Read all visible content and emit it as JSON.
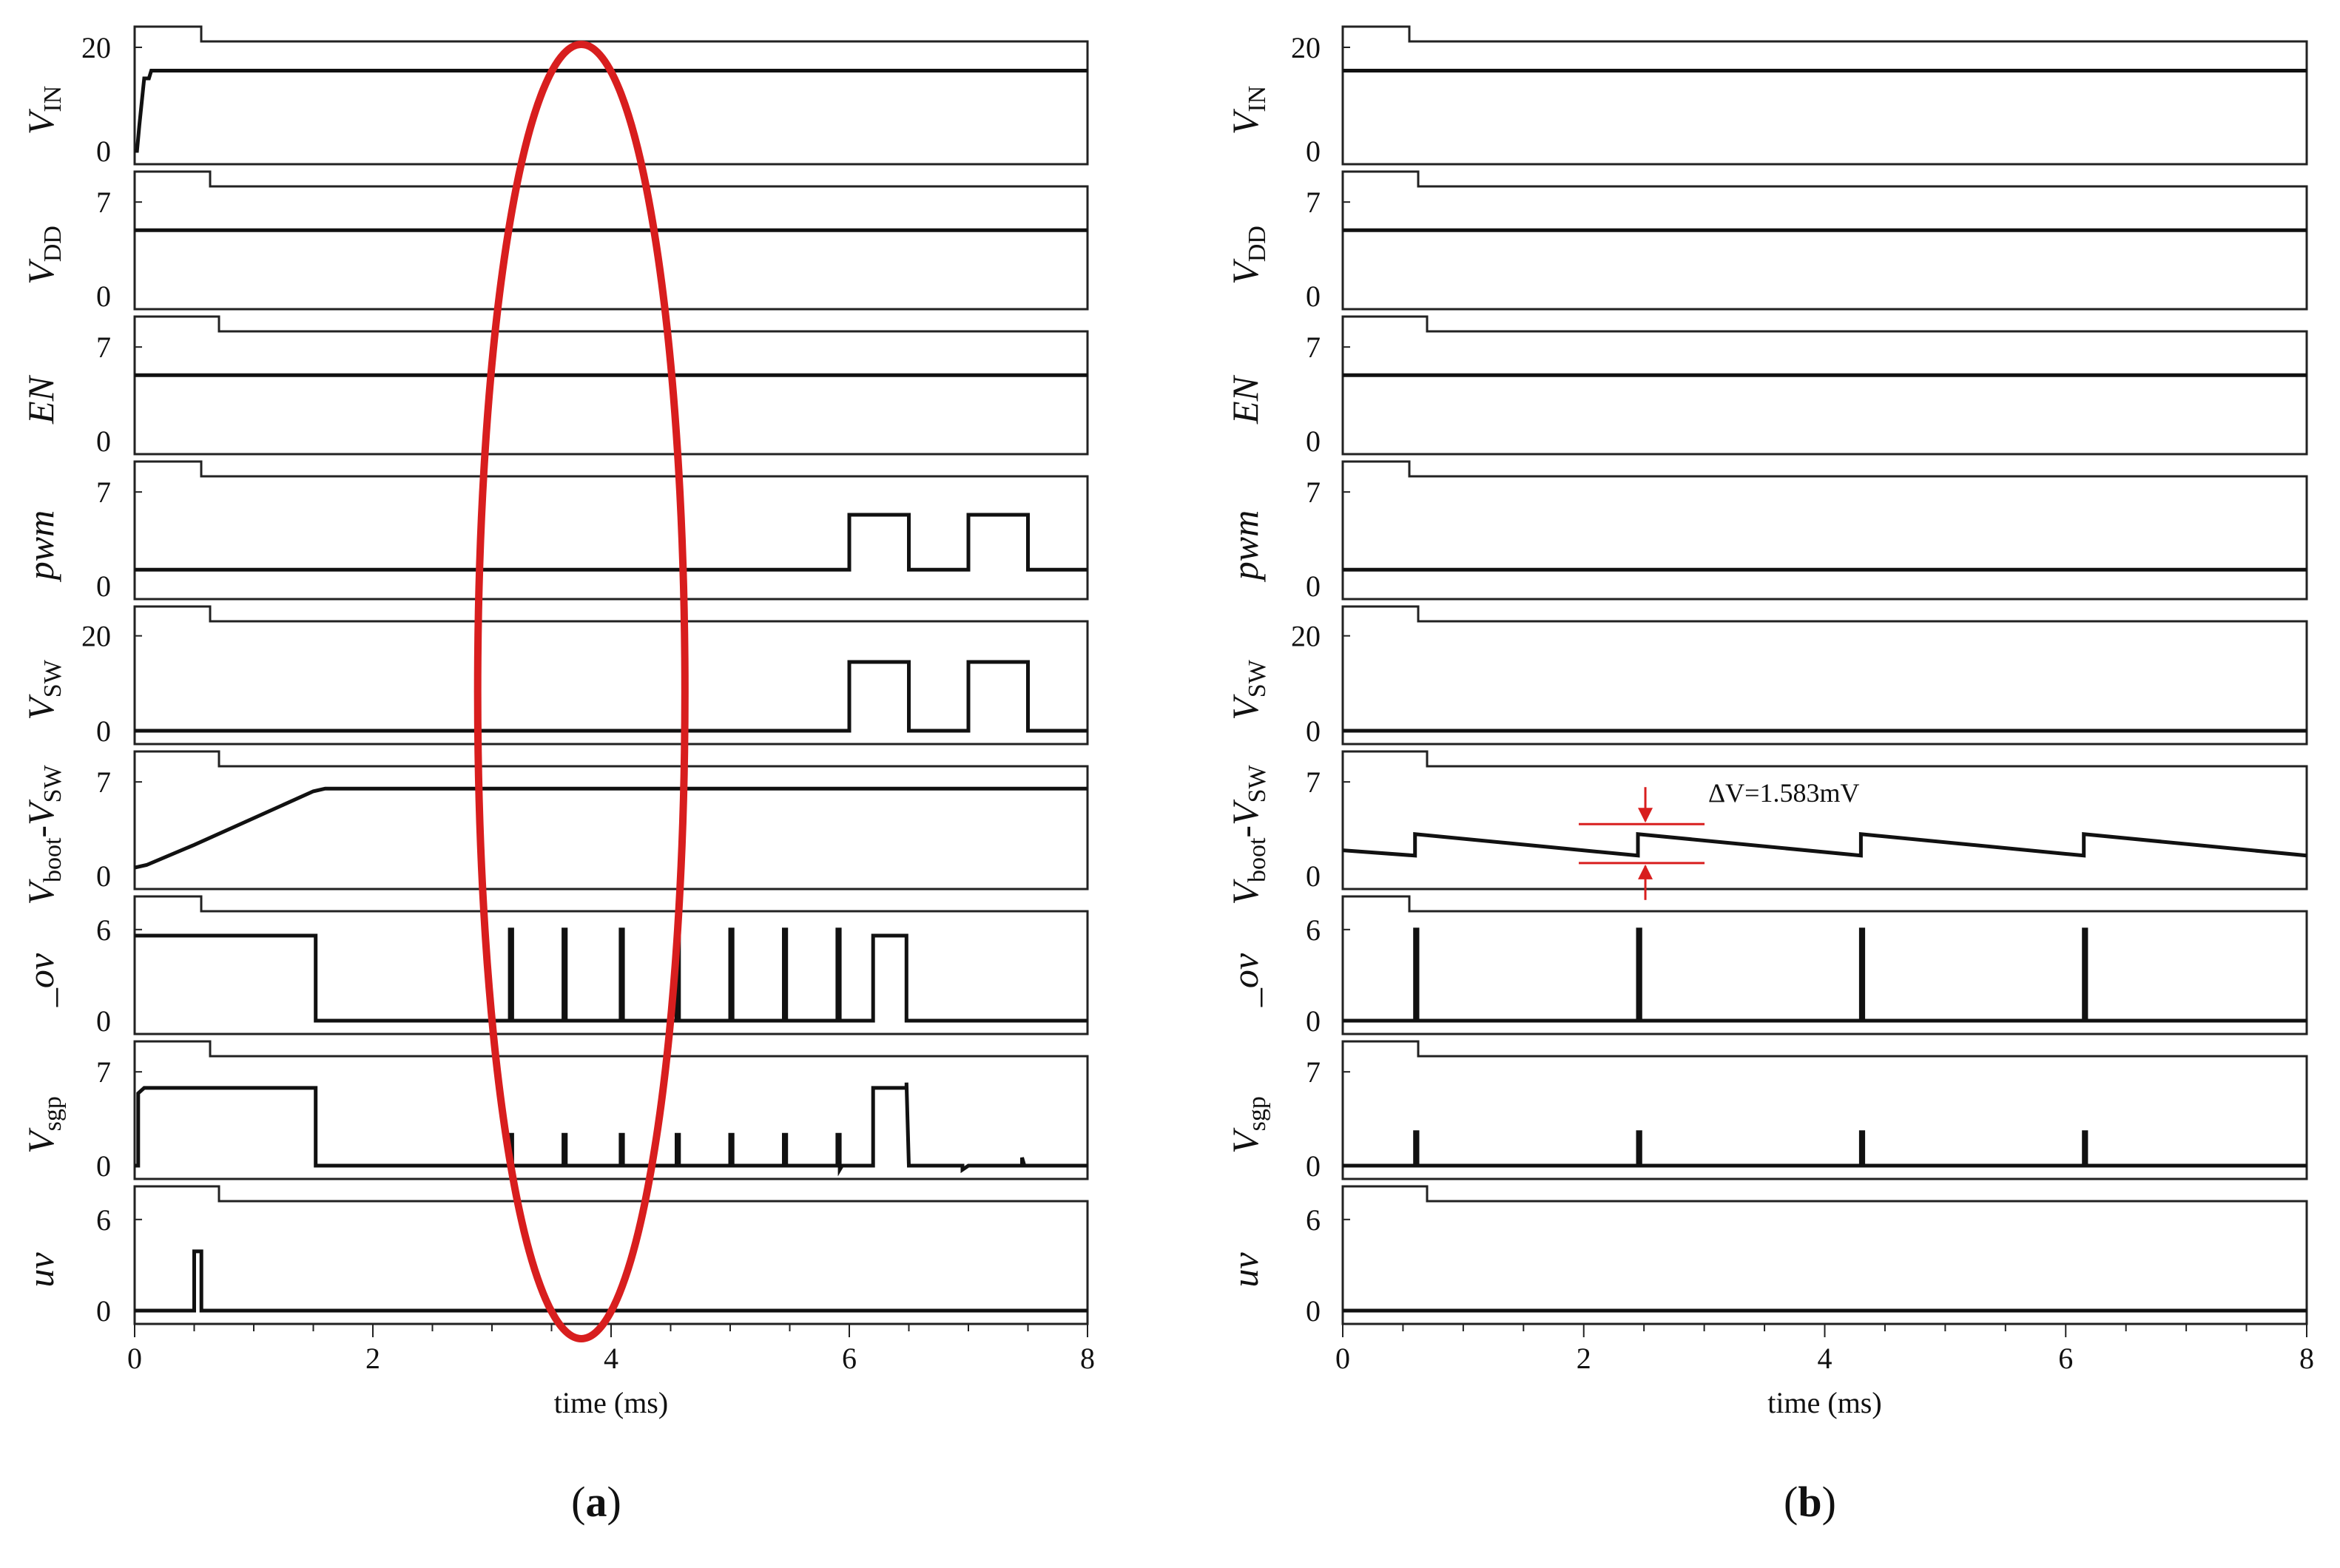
{
  "figure": {
    "colors": {
      "trace": "#111111",
      "frame": "#222222",
      "highlight": "#d81e1e"
    }
  },
  "chart_data": [
    {
      "id": "a",
      "panel_label_prefix": "(",
      "panel_label_letter": "a",
      "panel_label_suffix": ")",
      "type": "line",
      "xlabel": "time (ms)",
      "xlim": [
        0,
        8
      ],
      "xticks": [
        "0",
        "2",
        "4",
        "6",
        "8"
      ],
      "highlight": {
        "shape": "ellipse",
        "x_center": 3.75,
        "x_halfwidth": 0.87
      },
      "rows": [
        {
          "label_main": "V",
          "label_sub": "IN",
          "label_minus": "",
          "label_main2": "",
          "label_sub2": "",
          "ymax": 20,
          "ymax_label": "20",
          "ymin_label": "0",
          "ylim": [
            0,
            22
          ],
          "points": [
            [
              0,
              0
            ],
            [
              0.02,
              0
            ],
            [
              0.04,
              5
            ],
            [
              0.08,
              14
            ],
            [
              0.12,
              14
            ],
            [
              0.14,
              15.5
            ],
            [
              8,
              15.5
            ]
          ]
        },
        {
          "label_main": "V",
          "label_sub": "DD",
          "label_minus": "",
          "label_main2": "",
          "label_sub2": "",
          "ymax": 7,
          "ymax_label": "7",
          "ymin_label": "0",
          "ylim": [
            0,
            8.5
          ],
          "points": [
            [
              0,
              4.9
            ],
            [
              8,
              4.9
            ]
          ]
        },
        {
          "label_main": "EN",
          "label_sub": "",
          "label_minus": "",
          "label_main2": "",
          "label_sub2": "",
          "ymax": 7,
          "ymax_label": "7",
          "ymin_label": "0",
          "ylim": [
            0,
            8.5
          ],
          "points": [
            [
              0,
              4.9
            ],
            [
              8,
              4.9
            ]
          ]
        },
        {
          "label_main": "pwm",
          "label_sub": "",
          "label_minus": "",
          "label_main2": "",
          "label_sub2": "",
          "ymax": 7,
          "ymax_label": "7",
          "ymin_label": "0",
          "ylim": [
            0,
            8.5
          ],
          "points": [
            [
              0,
              1.2
            ],
            [
              6.0,
              1.2
            ],
            [
              6.0,
              5.3
            ],
            [
              6.5,
              5.3
            ],
            [
              6.5,
              1.2
            ],
            [
              7.0,
              1.2
            ],
            [
              7.0,
              5.3
            ],
            [
              7.5,
              5.3
            ],
            [
              7.5,
              1.2
            ],
            [
              8,
              1.2
            ]
          ]
        },
        {
          "label_main": "V",
          "label_sub": "SW",
          "label_minus": "",
          "label_main2": "",
          "label_sub2": "",
          "ymax": 20,
          "ymax_label": "20",
          "ymin_label": "0",
          "ylim": [
            0,
            24
          ],
          "points": [
            [
              0,
              0
            ],
            [
              6.0,
              0
            ],
            [
              6.0,
              14.5
            ],
            [
              6.5,
              14.5
            ],
            [
              6.5,
              0
            ],
            [
              7.0,
              0
            ],
            [
              7.0,
              14.5
            ],
            [
              7.5,
              14.5
            ],
            [
              7.5,
              0
            ],
            [
              8,
              0
            ]
          ]
        },
        {
          "label_main": "V",
          "label_sub": "boot",
          "label_minus": "-",
          "label_main2": "V",
          "label_sub2": "SW",
          "ymax": 7,
          "ymax_label": "7",
          "ymin_label": "0",
          "ylim": [
            0,
            8.5
          ],
          "points": [
            [
              0,
              0.6
            ],
            [
              0.1,
              0.8
            ],
            [
              0.5,
              2.3
            ],
            [
              1.0,
              4.3
            ],
            [
              1.5,
              6.3
            ],
            [
              1.6,
              6.5
            ],
            [
              8,
              6.5
            ]
          ]
        },
        {
          "label_main": "_ov",
          "label_sub": "",
          "label_minus": "",
          "label_main2": "",
          "label_sub2": "",
          "ymax": 6,
          "ymax_label": "6",
          "ymin_label": "0",
          "ylim": [
            0,
            7.5
          ],
          "points": [
            [
              0,
              5.6
            ],
            [
              1.52,
              5.6
            ],
            [
              1.52,
              0
            ],
            [
              3.15,
              0
            ],
            [
              3.15,
              6
            ],
            [
              3.17,
              6
            ],
            [
              3.17,
              0
            ],
            [
              3.6,
              0
            ],
            [
              3.6,
              6
            ],
            [
              3.62,
              6
            ],
            [
              3.62,
              0
            ],
            [
              4.08,
              0
            ],
            [
              4.08,
              6
            ],
            [
              4.1,
              6
            ],
            [
              4.1,
              0
            ],
            [
              4.55,
              0
            ],
            [
              4.55,
              6
            ],
            [
              4.57,
              6
            ],
            [
              4.57,
              0
            ],
            [
              5.0,
              0
            ],
            [
              5.0,
              6
            ],
            [
              5.02,
              6
            ],
            [
              5.02,
              0
            ],
            [
              5.45,
              0
            ],
            [
              5.45,
              6
            ],
            [
              5.47,
              6
            ],
            [
              5.47,
              0
            ],
            [
              5.9,
              0
            ],
            [
              5.9,
              6
            ],
            [
              5.92,
              6
            ],
            [
              5.92,
              0
            ],
            [
              6.2,
              0
            ],
            [
              6.2,
              5.6
            ],
            [
              6.48,
              5.6
            ],
            [
              6.48,
              0
            ],
            [
              8,
              0
            ]
          ]
        },
        {
          "label_main": "V",
          "label_sub": "sgp",
          "label_minus": "",
          "label_main2": "",
          "label_sub2": "",
          "ymax": 7,
          "ymax_label": "7",
          "ymin_label": "0",
          "ylim": [
            0,
            8.5
          ],
          "points": [
            [
              0,
              0
            ],
            [
              0.03,
              0
            ],
            [
              0.03,
              5.4
            ],
            [
              0.08,
              5.8
            ],
            [
              1.52,
              5.8
            ],
            [
              1.52,
              0
            ],
            [
              3.15,
              0
            ],
            [
              3.15,
              2.3
            ],
            [
              3.17,
              2.3
            ],
            [
              3.17,
              0
            ],
            [
              3.6,
              0
            ],
            [
              3.6,
              2.3
            ],
            [
              3.62,
              2.3
            ],
            [
              3.62,
              0
            ],
            [
              4.08,
              0
            ],
            [
              4.08,
              2.3
            ],
            [
              4.1,
              2.3
            ],
            [
              4.1,
              0
            ],
            [
              4.55,
              0
            ],
            [
              4.55,
              2.3
            ],
            [
              4.57,
              2.3
            ],
            [
              4.57,
              0
            ],
            [
              5.0,
              0
            ],
            [
              5.0,
              2.3
            ],
            [
              5.02,
              2.3
            ],
            [
              5.02,
              0
            ],
            [
              5.45,
              0
            ],
            [
              5.45,
              2.3
            ],
            [
              5.47,
              2.3
            ],
            [
              5.47,
              0
            ],
            [
              5.9,
              0
            ],
            [
              5.9,
              2.3
            ],
            [
              5.92,
              2.3
            ],
            [
              5.92,
              -0.3
            ],
            [
              5.94,
              0
            ],
            [
              6.2,
              0
            ],
            [
              6.2,
              5.8
            ],
            [
              6.48,
              5.8
            ],
            [
              6.48,
              6.2
            ],
            [
              6.5,
              0
            ],
            [
              6.95,
              0
            ],
            [
              6.95,
              -0.3
            ],
            [
              7.0,
              0
            ],
            [
              7.45,
              0
            ],
            [
              7.45,
              0.6
            ],
            [
              7.47,
              0
            ],
            [
              8,
              0
            ]
          ]
        },
        {
          "label_main": "uv",
          "label_sub": "",
          "label_minus": "",
          "label_main2": "",
          "label_sub2": "",
          "ymax": 6,
          "ymax_label": "6",
          "ymin_label": "0",
          "ylim": [
            0,
            7.5
          ],
          "points": [
            [
              0,
              0
            ],
            [
              0.5,
              0
            ],
            [
              0.5,
              3.9
            ],
            [
              0.56,
              3.9
            ],
            [
              0.56,
              0
            ],
            [
              8,
              0
            ]
          ]
        }
      ]
    },
    {
      "id": "b",
      "panel_label_prefix": "(",
      "panel_label_letter": "b",
      "panel_label_suffix": ")",
      "type": "line",
      "xlabel": "time (ms)",
      "xlim": [
        0,
        8
      ],
      "xticks": [
        "0",
        "2",
        "4",
        "6",
        "8"
      ],
      "annotation": {
        "text": "ΔV=1.583mV",
        "x": 2.45,
        "y_low": 1.5,
        "y_high": 3.3,
        "row_index": 5
      },
      "rows": [
        {
          "label_main": "V",
          "label_sub": "IN",
          "label_minus": "",
          "label_main2": "",
          "label_sub2": "",
          "ymax": 20,
          "ymax_label": "20",
          "ymin_label": "0",
          "ylim": [
            0,
            22
          ],
          "points": [
            [
              0,
              15.5
            ],
            [
              8,
              15.5
            ]
          ]
        },
        {
          "label_main": "V",
          "label_sub": "DD",
          "label_minus": "",
          "label_main2": "",
          "label_sub2": "",
          "ymax": 7,
          "ymax_label": "7",
          "ymin_label": "0",
          "ylim": [
            0,
            8.5
          ],
          "points": [
            [
              0,
              4.9
            ],
            [
              8,
              4.9
            ]
          ]
        },
        {
          "label_main": "EN",
          "label_sub": "",
          "label_minus": "",
          "label_main2": "",
          "label_sub2": "",
          "ymax": 7,
          "ymax_label": "7",
          "ymin_label": "0",
          "ylim": [
            0,
            8.5
          ],
          "points": [
            [
              0,
              4.9
            ],
            [
              8,
              4.9
            ]
          ]
        },
        {
          "label_main": "pwm",
          "label_sub": "",
          "label_minus": "",
          "label_main2": "",
          "label_sub2": "",
          "ymax": 7,
          "ymax_label": "7",
          "ymin_label": "0",
          "ylim": [
            0,
            8.5
          ],
          "points": [
            [
              0,
              1.2
            ],
            [
              8,
              1.2
            ]
          ]
        },
        {
          "label_main": "V",
          "label_sub": "SW",
          "label_minus": "",
          "label_main2": "",
          "label_sub2": "",
          "ymax": 20,
          "ymax_label": "20",
          "ymin_label": "0",
          "ylim": [
            0,
            24
          ],
          "points": [
            [
              0,
              0
            ],
            [
              8,
              0
            ]
          ]
        },
        {
          "label_main": "V",
          "label_sub": "boot",
          "label_minus": "-",
          "label_main2": "V",
          "label_sub2": "SW",
          "ymax": 7,
          "ymax_label": "7",
          "ymin_label": "0",
          "ylim": [
            0,
            8.5
          ],
          "points": [
            [
              0,
              1.9
            ],
            [
              0.6,
              1.5
            ],
            [
              0.6,
              3.1
            ],
            [
              2.45,
              1.5
            ],
            [
              2.45,
              3.1
            ],
            [
              4.3,
              1.5
            ],
            [
              4.3,
              3.1
            ],
            [
              6.15,
              1.5
            ],
            [
              6.15,
              3.1
            ],
            [
              8,
              1.5
            ]
          ]
        },
        {
          "label_main": "_ov",
          "label_sub": "",
          "label_minus": "",
          "label_main2": "",
          "label_sub2": "",
          "ymax": 6,
          "ymax_label": "6",
          "ymin_label": "0",
          "ylim": [
            0,
            7.5
          ],
          "points": [
            [
              0,
              0
            ],
            [
              0.6,
              0
            ],
            [
              0.6,
              6
            ],
            [
              0.62,
              6
            ],
            [
              0.62,
              0
            ],
            [
              2.45,
              0
            ],
            [
              2.45,
              6
            ],
            [
              2.47,
              6
            ],
            [
              2.47,
              0
            ],
            [
              4.3,
              0
            ],
            [
              4.3,
              6
            ],
            [
              4.32,
              6
            ],
            [
              4.32,
              0
            ],
            [
              6.15,
              0
            ],
            [
              6.15,
              6
            ],
            [
              6.17,
              6
            ],
            [
              6.17,
              0
            ],
            [
              8,
              0
            ]
          ]
        },
        {
          "label_main": "V",
          "label_sub": "sgp",
          "label_minus": "",
          "label_main2": "",
          "label_sub2": "",
          "ymax": 7,
          "ymax_label": "7",
          "ymin_label": "0",
          "ylim": [
            0,
            8.5
          ],
          "points": [
            [
              0,
              0
            ],
            [
              0.6,
              0
            ],
            [
              0.6,
              2.5
            ],
            [
              0.62,
              2.5
            ],
            [
              0.62,
              0
            ],
            [
              2.45,
              0
            ],
            [
              2.45,
              2.5
            ],
            [
              2.47,
              2.5
            ],
            [
              2.47,
              0
            ],
            [
              4.3,
              0
            ],
            [
              4.3,
              2.5
            ],
            [
              4.32,
              2.5
            ],
            [
              4.32,
              0
            ],
            [
              6.15,
              0
            ],
            [
              6.15,
              2.5
            ],
            [
              6.17,
              2.5
            ],
            [
              6.17,
              0
            ],
            [
              8,
              0
            ]
          ]
        },
        {
          "label_main": "uv",
          "label_sub": "",
          "label_minus": "",
          "label_main2": "",
          "label_sub2": "",
          "ymax": 6,
          "ymax_label": "6",
          "ymin_label": "0",
          "ylim": [
            0,
            7.5
          ],
          "points": [
            [
              0,
              0
            ],
            [
              8,
              0
            ]
          ]
        }
      ]
    }
  ]
}
